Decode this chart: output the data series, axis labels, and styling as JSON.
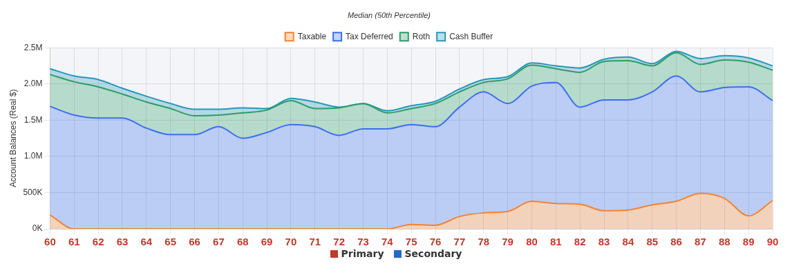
{
  "chart_data": {
    "type": "area",
    "title": "Median (50th Percentile)",
    "ylabel": "Account Balances (Real $)",
    "categories": [
      "60",
      "61",
      "62",
      "63",
      "64",
      "65",
      "66",
      "67",
      "68",
      "69",
      "70",
      "71",
      "72",
      "73",
      "74",
      "75",
      "76",
      "77",
      "78",
      "79",
      "80",
      "81",
      "82",
      "83",
      "84",
      "85",
      "86",
      "87",
      "88",
      "89",
      "90"
    ],
    "stacked": true,
    "legend": "top",
    "grid": true,
    "ylim": [
      0,
      2500000
    ],
    "yticks": [
      {
        "value": 0,
        "label": "0K"
      },
      {
        "value": 500000,
        "label": "500K"
      },
      {
        "value": 1000000,
        "label": "1.0M"
      },
      {
        "value": 1500000,
        "label": "1.5M"
      },
      {
        "value": 2000000,
        "label": "2.0M"
      },
      {
        "value": 2500000,
        "label": "2.5M"
      }
    ],
    "series": [
      {
        "name": "Taxable",
        "color": "#f5822f",
        "values": [
          190000,
          0,
          0,
          0,
          0,
          0,
          0,
          0,
          0,
          0,
          0,
          0,
          0,
          0,
          0,
          60000,
          50000,
          170000,
          220000,
          240000,
          380000,
          350000,
          340000,
          250000,
          260000,
          330000,
          380000,
          490000,
          420000,
          180000,
          390000
        ]
      },
      {
        "name": "Tax Deferred",
        "color": "#3b6ff0",
        "values": [
          1500000,
          1570000,
          1530000,
          1530000,
          1390000,
          1300000,
          1300000,
          1410000,
          1250000,
          1330000,
          1440000,
          1410000,
          1290000,
          1380000,
          1380000,
          1380000,
          1360000,
          1510000,
          1670000,
          1490000,
          1590000,
          1670000,
          1340000,
          1530000,
          1520000,
          1560000,
          1730000,
          1400000,
          1530000,
          1780000,
          1380000
        ]
      },
      {
        "name": "Roth",
        "color": "#2a9d66",
        "values": [
          440000,
          460000,
          430000,
          330000,
          360000,
          360000,
          260000,
          160000,
          350000,
          310000,
          330000,
          250000,
          380000,
          350000,
          220000,
          220000,
          320000,
          210000,
          130000,
          340000,
          290000,
          190000,
          480000,
          530000,
          540000,
          360000,
          320000,
          380000,
          380000,
          340000,
          420000
        ]
      },
      {
        "name": "Cash Buffer",
        "color": "#2896b8",
        "values": [
          80000,
          80000,
          100000,
          80000,
          80000,
          70000,
          90000,
          80000,
          70000,
          20000,
          30000,
          90000,
          10000,
          0,
          30000,
          40000,
          30000,
          40000,
          40000,
          30000,
          30000,
          40000,
          60000,
          30000,
          50000,
          30000,
          20000,
          80000,
          60000,
          60000,
          60000
        ]
      }
    ],
    "annotations": [
      "Primary",
      "Secondary"
    ]
  }
}
